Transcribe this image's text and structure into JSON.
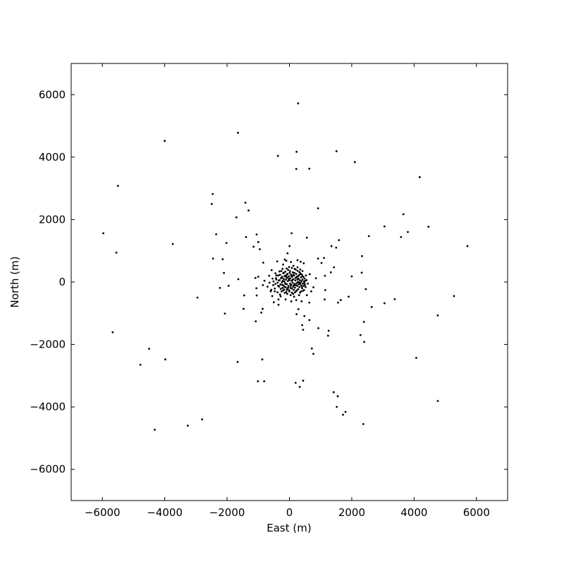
{
  "chart_data": {
    "type": "scatter",
    "title": "",
    "xlabel": "East (m)",
    "ylabel": "North (m)",
    "xlim": [
      -7000,
      7000
    ],
    "ylim": [
      -7000,
      7000
    ],
    "grid": false,
    "legend": "none",
    "marker_color": "#000000",
    "xticks": [
      -6000,
      -4000,
      -2000,
      0,
      2000,
      4000,
      6000
    ],
    "yticks": [
      -6000,
      -4000,
      -2000,
      0,
      2000,
      4000,
      6000
    ],
    "xtick_labels": [
      "−6000",
      "−4000",
      "−2000",
      "0",
      "2000",
      "4000",
      "6000"
    ],
    "ytick_labels": [
      "−6000",
      "−4000",
      "−2000",
      "0",
      "2000",
      "4000",
      "6000"
    ],
    "series": [
      {
        "points": [
          [
            280,
            5720
          ],
          [
            -1650,
            4780
          ],
          [
            -4000,
            4520
          ],
          [
            1510,
            4190
          ],
          [
            230,
            4170
          ],
          [
            -370,
            4040
          ],
          [
            2100,
            3840
          ],
          [
            220,
            3620
          ],
          [
            640,
            3630
          ],
          [
            4180,
            3360
          ],
          [
            -5500,
            3080
          ],
          [
            -2460,
            2820
          ],
          [
            -1410,
            2540
          ],
          [
            -2490,
            2500
          ],
          [
            -1310,
            2290
          ],
          [
            920,
            2360
          ],
          [
            -1700,
            2070
          ],
          [
            3660,
            2170
          ],
          [
            3050,
            1780
          ],
          [
            3800,
            1600
          ],
          [
            4460,
            1770
          ],
          [
            2550,
            1470
          ],
          [
            3580,
            1440
          ],
          [
            -5970,
            1560
          ],
          [
            -2350,
            1530
          ],
          [
            -1050,
            1520
          ],
          [
            70,
            1560
          ],
          [
            560,
            1420
          ],
          [
            -1390,
            1440
          ],
          [
            1590,
            1340
          ],
          [
            -2020,
            1250
          ],
          [
            -1000,
            1280
          ],
          [
            -3740,
            1220
          ],
          [
            5710,
            1150
          ],
          [
            -5550,
            940
          ],
          [
            -1150,
            1130
          ],
          [
            1350,
            1150
          ],
          [
            1500,
            1100
          ],
          [
            -950,
            1050
          ],
          [
            5,
            1150
          ],
          [
            -60,
            920
          ],
          [
            -2450,
            750
          ],
          [
            -2140,
            730
          ],
          [
            2330,
            830
          ],
          [
            920,
            750
          ],
          [
            1110,
            770
          ],
          [
            1030,
            610
          ],
          [
            -150,
            720
          ],
          [
            -390,
            660
          ],
          [
            -840,
            620
          ],
          [
            1430,
            470
          ],
          [
            1330,
            310
          ],
          [
            -570,
            380
          ],
          [
            -1090,
            130
          ],
          [
            -2100,
            290
          ],
          [
            -1640,
            90
          ],
          [
            1140,
            200
          ],
          [
            850,
            120
          ],
          [
            2320,
            300
          ],
          [
            2000,
            180
          ],
          [
            -2230,
            -190
          ],
          [
            -1950,
            -120
          ],
          [
            -1060,
            -200
          ],
          [
            -850,
            -100
          ],
          [
            -520,
            -100
          ],
          [
            -580,
            -250
          ],
          [
            -470,
            -300
          ],
          [
            1150,
            -260
          ],
          [
            770,
            -170
          ],
          [
            -1450,
            -430
          ],
          [
            -1050,
            -430
          ],
          [
            -2950,
            -500
          ],
          [
            -280,
            -460
          ],
          [
            1130,
            -560
          ],
          [
            1650,
            -580
          ],
          [
            1560,
            -660
          ],
          [
            1900,
            -470
          ],
          [
            2450,
            -230
          ],
          [
            -860,
            -860
          ],
          [
            -900,
            -980
          ],
          [
            -1470,
            -860
          ],
          [
            -350,
            -730
          ],
          [
            -500,
            -650
          ],
          [
            640,
            -660
          ],
          [
            3050,
            -680
          ],
          [
            3380,
            -550
          ],
          [
            5280,
            -450
          ],
          [
            2640,
            -800
          ],
          [
            290,
            -870
          ],
          [
            230,
            -1030
          ],
          [
            -2070,
            -1010
          ],
          [
            -1080,
            -1260
          ],
          [
            480,
            -1090
          ],
          [
            410,
            -1380
          ],
          [
            640,
            -1220
          ],
          [
            440,
            -1530
          ],
          [
            1260,
            -1560
          ],
          [
            930,
            -1480
          ],
          [
            1240,
            -1720
          ],
          [
            2280,
            -1700
          ],
          [
            2390,
            -1280
          ],
          [
            4760,
            -1070
          ],
          [
            -5670,
            -1610
          ],
          [
            2400,
            -1920
          ],
          [
            720,
            -2130
          ],
          [
            770,
            -2300
          ],
          [
            -4500,
            -2140
          ],
          [
            4070,
            -2430
          ],
          [
            -4780,
            -2650
          ],
          [
            -3980,
            -2480
          ],
          [
            -870,
            -2480
          ],
          [
            -1660,
            -2560
          ],
          [
            -1010,
            -3180
          ],
          [
            -810,
            -3180
          ],
          [
            200,
            -3230
          ],
          [
            440,
            -3160
          ],
          [
            330,
            -3360
          ],
          [
            1420,
            -3530
          ],
          [
            1550,
            -3660
          ],
          [
            4760,
            -3810
          ],
          [
            1520,
            -4000
          ],
          [
            1720,
            -4250
          ],
          [
            1800,
            -4160
          ],
          [
            -2800,
            -4400
          ],
          [
            -3260,
            -4600
          ],
          [
            -4320,
            -4730
          ],
          [
            2370,
            -4550
          ],
          [
            -1000,
            170
          ],
          [
            -430,
            120
          ],
          [
            -800,
            40
          ],
          [
            -640,
            -20
          ],
          [
            -510,
            20
          ],
          [
            -450,
            280
          ],
          [
            -420,
            80
          ],
          [
            -380,
            -20
          ],
          [
            -360,
            210
          ],
          [
            -330,
            -150
          ],
          [
            -310,
            60
          ],
          [
            -290,
            -80
          ],
          [
            -270,
            130
          ],
          [
            -260,
            350
          ],
          [
            -250,
            -300
          ],
          [
            -240,
            -10
          ],
          [
            -230,
            170
          ],
          [
            -220,
            -190
          ],
          [
            -210,
            40
          ],
          [
            -200,
            280
          ],
          [
            -190,
            -110
          ],
          [
            -180,
            100
          ],
          [
            -170,
            -240
          ],
          [
            -160,
            20
          ],
          [
            -150,
            190
          ],
          [
            -140,
            -40
          ],
          [
            -130,
            330
          ],
          [
            -120,
            -170
          ],
          [
            -110,
            80
          ],
          [
            -100,
            -320
          ],
          [
            -90,
            230
          ],
          [
            -80,
            -70
          ],
          [
            -70,
            140
          ],
          [
            -60,
            -210
          ],
          [
            -50,
            30
          ],
          [
            -40,
            390
          ],
          [
            -30,
            -130
          ],
          [
            -20,
            180
          ],
          [
            -10,
            -260
          ],
          [
            0,
            60
          ],
          [
            10,
            290
          ],
          [
            20,
            -50
          ],
          [
            30,
            120
          ],
          [
            40,
            -190
          ],
          [
            50,
            230
          ],
          [
            60,
            -90
          ],
          [
            70,
            40
          ],
          [
            80,
            -340
          ],
          [
            90,
            170
          ],
          [
            100,
            -20
          ],
          [
            110,
            310
          ],
          [
            120,
            -150
          ],
          [
            130,
            90
          ],
          [
            140,
            -250
          ],
          [
            150,
            210
          ],
          [
            160,
            -60
          ],
          [
            170,
            420
          ],
          [
            180,
            -180
          ],
          [
            190,
            50
          ],
          [
            200,
            130
          ],
          [
            210,
            -300
          ],
          [
            220,
            260
          ],
          [
            230,
            -40
          ],
          [
            240,
            170
          ],
          [
            250,
            -120
          ],
          [
            260,
            360
          ],
          [
            270,
            0
          ],
          [
            280,
            -230
          ],
          [
            290,
            110
          ],
          [
            300,
            -70
          ],
          [
            310,
            220
          ],
          [
            320,
            -160
          ],
          [
            330,
            60
          ],
          [
            340,
            -340
          ],
          [
            350,
            280
          ],
          [
            360,
            -20
          ],
          [
            370,
            150
          ],
          [
            380,
            -110
          ],
          [
            390,
            30
          ],
          [
            400,
            240
          ],
          [
            410,
            -200
          ],
          [
            420,
            80
          ],
          [
            430,
            -50
          ],
          [
            440,
            -280
          ],
          [
            450,
            160
          ],
          [
            460,
            -120
          ],
          [
            470,
            20
          ],
          [
            480,
            -30
          ],
          [
            490,
            110
          ],
          [
            500,
            -90
          ],
          [
            510,
            40
          ],
          [
            520,
            -160
          ],
          [
            530,
            210
          ],
          [
            -470,
            -210
          ],
          [
            -420,
            210
          ],
          [
            -360,
            -120
          ],
          [
            -340,
            50
          ],
          [
            -300,
            230
          ],
          [
            -280,
            -220
          ],
          [
            -250,
            120
          ],
          [
            -230,
            -90
          ],
          [
            -200,
            -270
          ],
          [
            -180,
            300
          ],
          [
            -160,
            -150
          ],
          [
            -140,
            200
          ],
          [
            -120,
            -60
          ],
          [
            -100,
            160
          ],
          [
            -80,
            -250
          ],
          [
            -60,
            260
          ],
          [
            -40,
            -180
          ],
          [
            -20,
            100
          ],
          [
            0,
            -300
          ],
          [
            20,
            350
          ],
          [
            40,
            -120
          ],
          [
            60,
            200
          ],
          [
            80,
            -210
          ],
          [
            100,
            70
          ],
          [
            120,
            230
          ],
          [
            140,
            -110
          ],
          [
            160,
            290
          ],
          [
            180,
            -330
          ],
          [
            200,
            -100
          ],
          [
            220,
            140
          ],
          [
            240,
            -270
          ],
          [
            260,
            80
          ],
          [
            280,
            190
          ],
          [
            300,
            -10
          ],
          [
            320,
            320
          ],
          [
            340,
            -60
          ],
          [
            360,
            250
          ],
          [
            380,
            -300
          ],
          [
            400,
            -150
          ],
          [
            420,
            190
          ],
          [
            -150,
            -350
          ],
          [
            -70,
            -380
          ],
          [
            40,
            -420
          ],
          [
            120,
            -380
          ],
          [
            200,
            400
          ],
          [
            80,
            450
          ],
          [
            -90,
            430
          ],
          [
            310,
            -420
          ],
          [
            -320,
            340
          ],
          [
            420,
            350
          ],
          [
            -380,
            -330
          ],
          [
            470,
            -260
          ],
          [
            -450,
            -60
          ],
          [
            550,
            60
          ],
          [
            -10,
            480
          ],
          [
            -220,
            420
          ],
          [
            260,
            470
          ],
          [
            350,
            400
          ],
          [
            -300,
            -400
          ],
          [
            150,
            -470
          ],
          [
            590,
            -50
          ],
          [
            -540,
            110
          ],
          [
            -100,
            680
          ],
          [
            50,
            640
          ],
          [
            260,
            700
          ],
          [
            360,
            650
          ],
          [
            460,
            600
          ],
          [
            130,
            520
          ],
          [
            -200,
            560
          ],
          [
            -700,
            -150
          ],
          [
            -650,
            200
          ],
          [
            -600,
            -300
          ],
          [
            700,
            -300
          ],
          [
            650,
            250
          ],
          [
            560,
            -420
          ],
          [
            -120,
            -560
          ],
          [
            60,
            -620
          ],
          [
            220,
            -580
          ],
          [
            -350,
            -560
          ],
          [
            390,
            -620
          ],
          [
            -550,
            -450
          ]
        ]
      }
    ]
  }
}
